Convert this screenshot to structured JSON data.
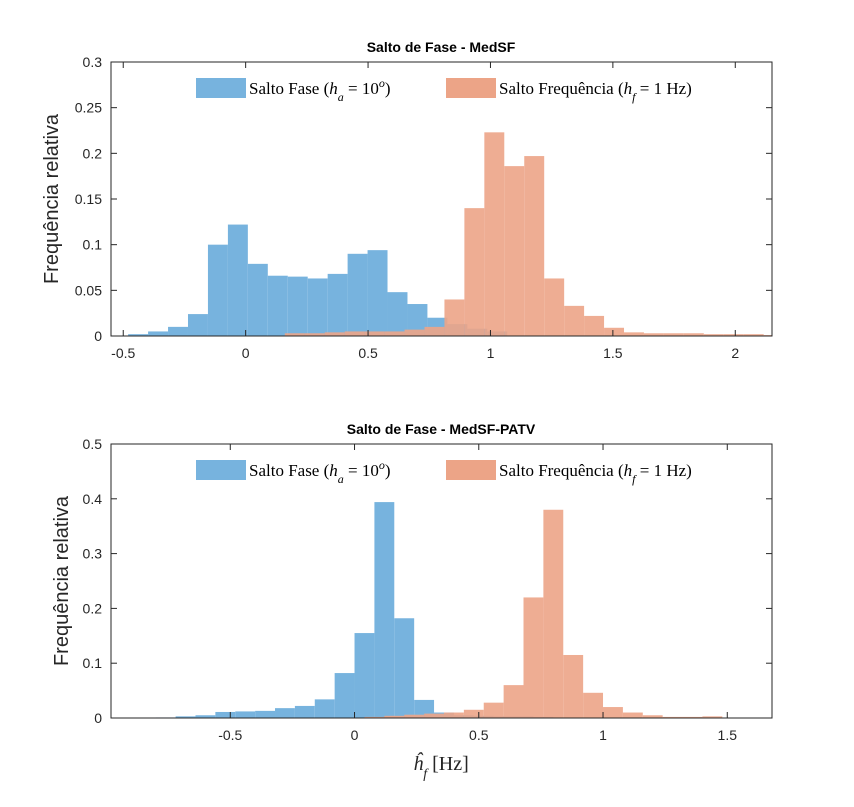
{
  "chart_data": [
    {
      "type": "histogram",
      "title": "Salto de Fase - MedSF",
      "ylabel": "Frequência relativa",
      "xlabel": "",
      "xlim": [
        -0.55,
        2.15
      ],
      "ylim": [
        0,
        0.3
      ],
      "xticks": [
        -0.5,
        0,
        0.5,
        1,
        1.5,
        2
      ],
      "xtick_labels": [
        "-0.5",
        "0",
        "0.5",
        "1",
        "1.5",
        "2"
      ],
      "yticks": [
        0,
        0.05,
        0.1,
        0.15,
        0.2,
        0.25,
        0.3
      ],
      "ytick_labels": [
        "0",
        "0.05",
        "0.1",
        "0.15",
        "0.2",
        "0.25",
        "0.3"
      ],
      "legend_position": "top",
      "series": [
        {
          "name": "Salto Fase",
          "legend": {
            "plain": "Salto Fase (",
            "italic": "h",
            "sub": "a",
            "equals": " = 10",
            "sup": "o",
            "close": ")"
          },
          "color": "#77b3de",
          "bin_width": 0.0815,
          "bin_edges_start": -0.48,
          "values": [
            0.002,
            0.005,
            0.01,
            0.024,
            0.1,
            0.122,
            0.079,
            0.066,
            0.065,
            0.063,
            0.068,
            0.09,
            0.094,
            0.048,
            0.035,
            0.02,
            0.013,
            0.008,
            0.005
          ]
        },
        {
          "name": "Salto Frequência",
          "legend": {
            "plain": "Salto Frequência (",
            "italic": "h",
            "sub": "f",
            "equals": " = 1 Hz)"
          },
          "color": "#eca487",
          "bin_width": 0.0815,
          "bin_edges_start": 0.16,
          "values": [
            0.003,
            0.003,
            0.004,
            0.005,
            0.005,
            0.005,
            0.007,
            0.01,
            0.04,
            0.14,
            0.223,
            0.186,
            0.197,
            0.063,
            0.033,
            0.022,
            0.009,
            0.004,
            0.003,
            0.003,
            0.003,
            0.002,
            0.002,
            0.002,
            0.001,
            0.001,
            0.001,
            0.002,
            0.002
          ]
        }
      ]
    },
    {
      "type": "histogram",
      "title": "Salto de Fase - MedSF-PATV",
      "ylabel": "Frequência relativa",
      "xlabel": "ĥ_f [Hz]",
      "xlabel_parts": {
        "italic": "ĥ",
        "sub": "f",
        "unit": " [Hz]"
      },
      "xlim": [
        -0.98,
        1.68
      ],
      "ylim": [
        0,
        0.5
      ],
      "xticks": [
        -0.5,
        0,
        0.5,
        1,
        1.5
      ],
      "xtick_labels": [
        "-0.5",
        "0",
        "0.5",
        "1",
        "1.5"
      ],
      "yticks": [
        0,
        0.1,
        0.2,
        0.3,
        0.4,
        0.5
      ],
      "ytick_labels": [
        "0",
        "0.1",
        "0.2",
        "0.3",
        "0.4",
        "0.5"
      ],
      "legend_position": "top",
      "series": [
        {
          "name": "Salto Fase",
          "legend": {
            "plain": "Salto Fase (",
            "italic": "h",
            "sub": "a",
            "equals": " = 10",
            "sup": "o",
            "close": ")"
          },
          "color": "#77b3de",
          "bin_width": 0.08,
          "bin_edges_start": -0.8,
          "values": [
            0.001,
            0.003,
            0.005,
            0.011,
            0.012,
            0.013,
            0.018,
            0.022,
            0.034,
            0.082,
            0.155,
            0.394,
            0.182,
            0.033,
            0.01,
            0.005,
            0.004,
            0.003,
            0.003,
            0.002
          ]
        },
        {
          "name": "Salto Frequência",
          "legend": {
            "plain": "Salto Frequência (",
            "italic": "h",
            "sub": "f",
            "equals": " = 1 Hz)"
          },
          "color": "#eca487",
          "bin_width": 0.08,
          "bin_edges_start": 0.04,
          "values": [
            0.002,
            0.004,
            0.006,
            0.008,
            0.01,
            0.015,
            0.028,
            0.06,
            0.22,
            0.38,
            0.115,
            0.046,
            0.02,
            0.01,
            0.005,
            0.002,
            0.002,
            0.003
          ]
        }
      ]
    }
  ]
}
